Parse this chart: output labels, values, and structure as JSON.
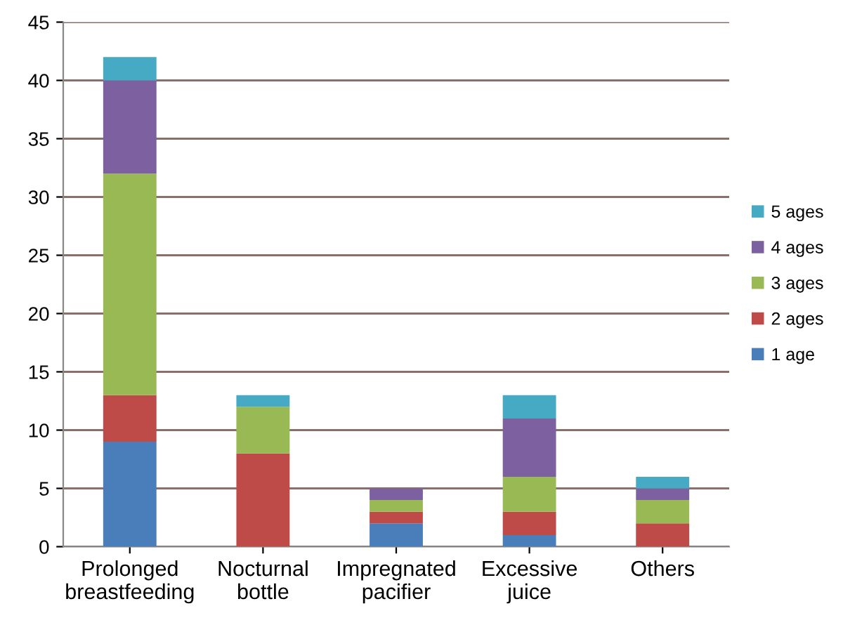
{
  "chart_data": {
    "type": "bar",
    "stacked": true,
    "categories": [
      "Prolonged\nbreastfeeding",
      "Nocturnal\nbottle",
      "Impregnated\npacifier",
      "Excessive\njuice",
      "Others"
    ],
    "series": [
      {
        "name": "1 age",
        "color": "#4a7ebb",
        "values": [
          9,
          0,
          2,
          1,
          0
        ]
      },
      {
        "name": "2 ages",
        "color": "#be4b48",
        "values": [
          4,
          8,
          1,
          2,
          2
        ]
      },
      {
        "name": "3 ages",
        "color": "#98b954",
        "values": [
          19,
          4,
          1,
          3,
          2
        ]
      },
      {
        "name": "4 ages",
        "color": "#7d60a0",
        "values": [
          8,
          0,
          1,
          5,
          1
        ]
      },
      {
        "name": "5 ages",
        "color": "#46aac5",
        "values": [
          2,
          1,
          0,
          2,
          1
        ]
      }
    ],
    "ylim": [
      0,
      45
    ],
    "yticks": [
      0,
      5,
      10,
      15,
      20,
      25,
      30,
      35,
      40,
      45
    ],
    "grid": "y",
    "legend": "right"
  }
}
